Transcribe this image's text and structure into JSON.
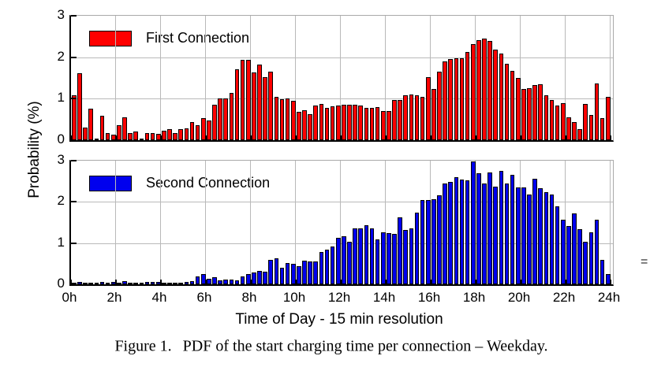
{
  "figure": {
    "ylabel": "Probability (%)",
    "xlabel": "Time of Day - 15 min resolution",
    "caption_label": "Figure 1.",
    "caption_text": "PDF of the start charging time per connection – Weekday.",
    "stray_text": "=",
    "x_tick_labels": [
      "0h",
      "2h",
      "4h",
      "6h",
      "8h",
      "10h",
      "12h",
      "14h",
      "16h",
      "18h",
      "20h",
      "22h",
      "24h"
    ],
    "y_tick_labels": [
      "0",
      "1",
      "2",
      "3"
    ]
  },
  "chart_data": [
    {
      "type": "bar",
      "legend": "First Connection",
      "color": "#ff0000",
      "bin_minutes": 15,
      "x_range_hours": [
        0,
        24
      ],
      "ylim": [
        0,
        3
      ],
      "y_ticks": [
        0,
        1,
        2,
        3
      ],
      "ylabel": "Probability (%)",
      "grid": true,
      "values": [
        1.08,
        1.62,
        0.31,
        0.76,
        0.04,
        0.58,
        0.17,
        0.13,
        0.36,
        0.55,
        0.18,
        0.21,
        0.03,
        0.18,
        0.18,
        0.16,
        0.22,
        0.27,
        0.18,
        0.26,
        0.29,
        0.43,
        0.37,
        0.54,
        0.47,
        0.85,
        1.0,
        1.0,
        1.14,
        1.7,
        1.93,
        1.93,
        1.64,
        1.83,
        1.52,
        1.66,
        1.05,
        0.99,
        1.01,
        0.95,
        0.68,
        0.72,
        0.63,
        0.83,
        0.87,
        0.77,
        0.81,
        0.84,
        0.86,
        0.86,
        0.85,
        0.83,
        0.78,
        0.77,
        0.79,
        0.71,
        0.7,
        0.97,
        0.96,
        1.08,
        1.1,
        1.08,
        1.04,
        1.52,
        1.24,
        1.66,
        1.89,
        1.96,
        1.97,
        1.98,
        2.13,
        2.32,
        2.42,
        2.45,
        2.4,
        2.19,
        2.09,
        1.85,
        1.67,
        1.5,
        1.23,
        1.26,
        1.33,
        1.35,
        1.08,
        0.97,
        0.84,
        0.9,
        0.56,
        0.43,
        0.27,
        0.87,
        0.6,
        1.37,
        0.53,
        1.05
      ]
    },
    {
      "type": "bar",
      "legend": "Second Connection",
      "color": "#0000ee",
      "bin_minutes": 15,
      "x_range_hours": [
        0,
        24
      ],
      "ylim": [
        0,
        3
      ],
      "y_ticks": [
        0,
        1,
        2,
        3
      ],
      "ylabel": "Probability (%)",
      "grid": true,
      "values": [
        0.04,
        0.05,
        0.03,
        0.04,
        0.02,
        0.05,
        0.04,
        0.05,
        0.03,
        0.07,
        0.04,
        0.02,
        0.01,
        0.06,
        0.05,
        0.06,
        0.02,
        0.03,
        0.02,
        0.04,
        0.06,
        0.08,
        0.2,
        0.25,
        0.14,
        0.18,
        0.1,
        0.12,
        0.12,
        0.09,
        0.2,
        0.25,
        0.28,
        0.33,
        0.3,
        0.6,
        0.63,
        0.4,
        0.52,
        0.49,
        0.44,
        0.57,
        0.55,
        0.55,
        0.78,
        0.84,
        0.92,
        1.13,
        1.16,
        1.04,
        1.35,
        1.35,
        1.43,
        1.36,
        1.08,
        1.27,
        1.25,
        1.22,
        1.62,
        1.32,
        1.36,
        1.73,
        2.04,
        2.05,
        2.06,
        2.15,
        2.45,
        2.48,
        2.59,
        2.55,
        2.53,
        2.98,
        2.7,
        2.45,
        2.72,
        2.37,
        2.76,
        2.45,
        2.66,
        2.36,
        2.36,
        2.18,
        2.56,
        2.34,
        2.24,
        2.18,
        1.89,
        1.57,
        1.41,
        1.72,
        1.34,
        1.03,
        1.27,
        1.57,
        0.6,
        0.25
      ]
    }
  ]
}
